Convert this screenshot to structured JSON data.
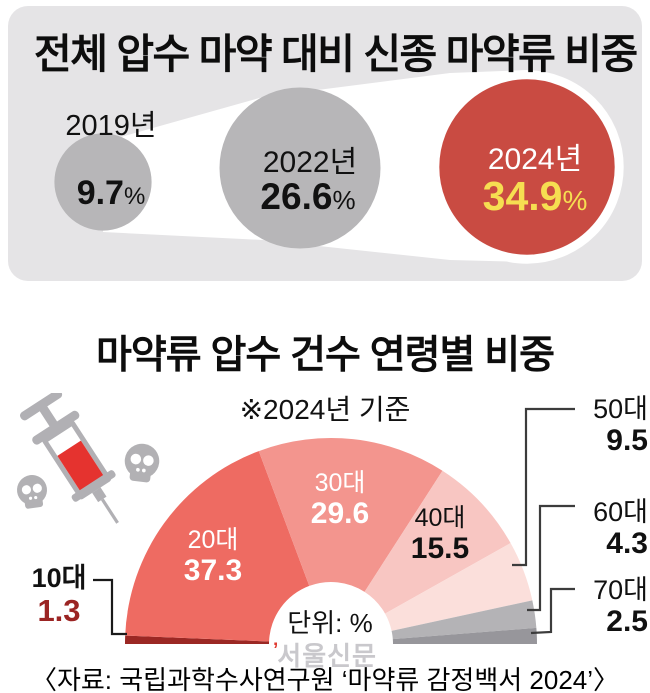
{
  "top_panel": {
    "title": "전체 압수 마약 대비 신종 마약류 비중",
    "background_color": "#e5e4e6",
    "beam_color": "#ffffff",
    "chart_data": {
      "type": "bubble",
      "shape": "proportional-area-circles",
      "unit": "%",
      "points": [
        {
          "label": "2019년",
          "value": 9.7,
          "color": "#b7b6b8",
          "label_color": "#111111",
          "value_color": "#111111"
        },
        {
          "label": "2022년",
          "value": 26.6,
          "color": "#b7b6b8",
          "label_color": "#111111",
          "value_color": "#111111"
        },
        {
          "label": "2024년",
          "value": 34.9,
          "color": "#c94b42",
          "label_color": "#ffffff",
          "value_color": "#f6de51",
          "ring_color": "#ffffff"
        }
      ]
    }
  },
  "bottom_panel": {
    "title": "마약류 압수 건수 연령별 비중",
    "note": "※2024년 기준",
    "unit_label": "단위: %",
    "watermark": "서울신문",
    "source": "〈자료: 국립과학수사연구원 ‘마약류 감정백서 2024’〉",
    "icons": {
      "syringe": "syringe-icon",
      "skulls": "skull-icon"
    },
    "chart_data": {
      "type": "pie",
      "shape": "semicircle-donut",
      "unit": "%",
      "total": 100,
      "segments": [
        {
          "label": "10대",
          "value": 1.3,
          "color": "#9b2824",
          "label_placement": "outside-left",
          "label_color": "#111111",
          "value_color": "#9b2423"
        },
        {
          "label": "20대",
          "value": 37.3,
          "color": "#ee6b62",
          "label_placement": "inside",
          "label_color": "#ffffff"
        },
        {
          "label": "30대",
          "value": 29.6,
          "color": "#f3958e",
          "label_placement": "inside",
          "label_color": "#ffffff"
        },
        {
          "label": "40대",
          "value": 15.5,
          "color": "#f8c6c2",
          "label_placement": "inside",
          "label_color": "#111111"
        },
        {
          "label": "50대",
          "value": 9.5,
          "color": "#fbdfdb",
          "label_placement": "outside-right",
          "label_color": "#111111"
        },
        {
          "label": "60대",
          "value": 4.3,
          "color": "#b4b3b6",
          "label_placement": "outside-right",
          "label_color": "#111111"
        },
        {
          "label": "70대",
          "value": 2.5,
          "color": "#97969b",
          "label_placement": "outside-right",
          "label_color": "#111111"
        }
      ]
    }
  }
}
